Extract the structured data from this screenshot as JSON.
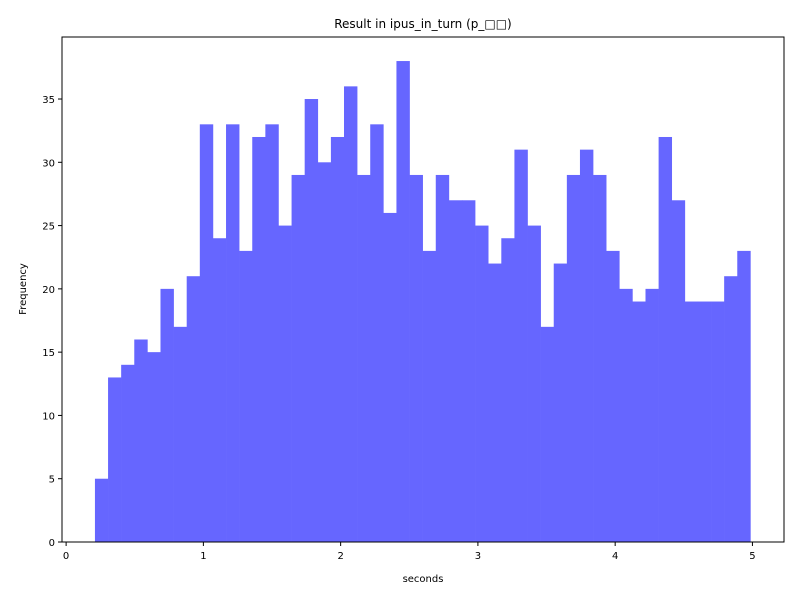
{
  "chart_data": {
    "type": "bar",
    "title": "Result in ipus_in_turn (p_□□)",
    "xlabel": "seconds",
    "ylabel": "Frequency",
    "xlim": [
      -0.03,
      5.23
    ],
    "ylim": [
      0,
      39.9
    ],
    "bar_color": "#6666ff",
    "bin_start": 0.21,
    "bin_width": 0.0955,
    "values": [
      5,
      13,
      14,
      16,
      15,
      20,
      17,
      21,
      33,
      24,
      33,
      23,
      32,
      33,
      25,
      29,
      35,
      30,
      32,
      36,
      29,
      33,
      26,
      38,
      29,
      23,
      29,
      27,
      27,
      25,
      22,
      24,
      31,
      25,
      17,
      22,
      29,
      31,
      29,
      23,
      20,
      19,
      20,
      32,
      27,
      19,
      19,
      19,
      21,
      23
    ],
    "xticks": [
      0,
      1,
      2,
      3,
      4,
      5
    ],
    "xtick_labels": [
      "0",
      "1",
      "2",
      "3",
      "4",
      "5"
    ],
    "yticks": [
      0,
      5,
      10,
      15,
      20,
      25,
      30,
      35
    ],
    "ytick_labels": [
      "0",
      "5",
      "10",
      "15",
      "20",
      "25",
      "30",
      "35"
    ]
  }
}
